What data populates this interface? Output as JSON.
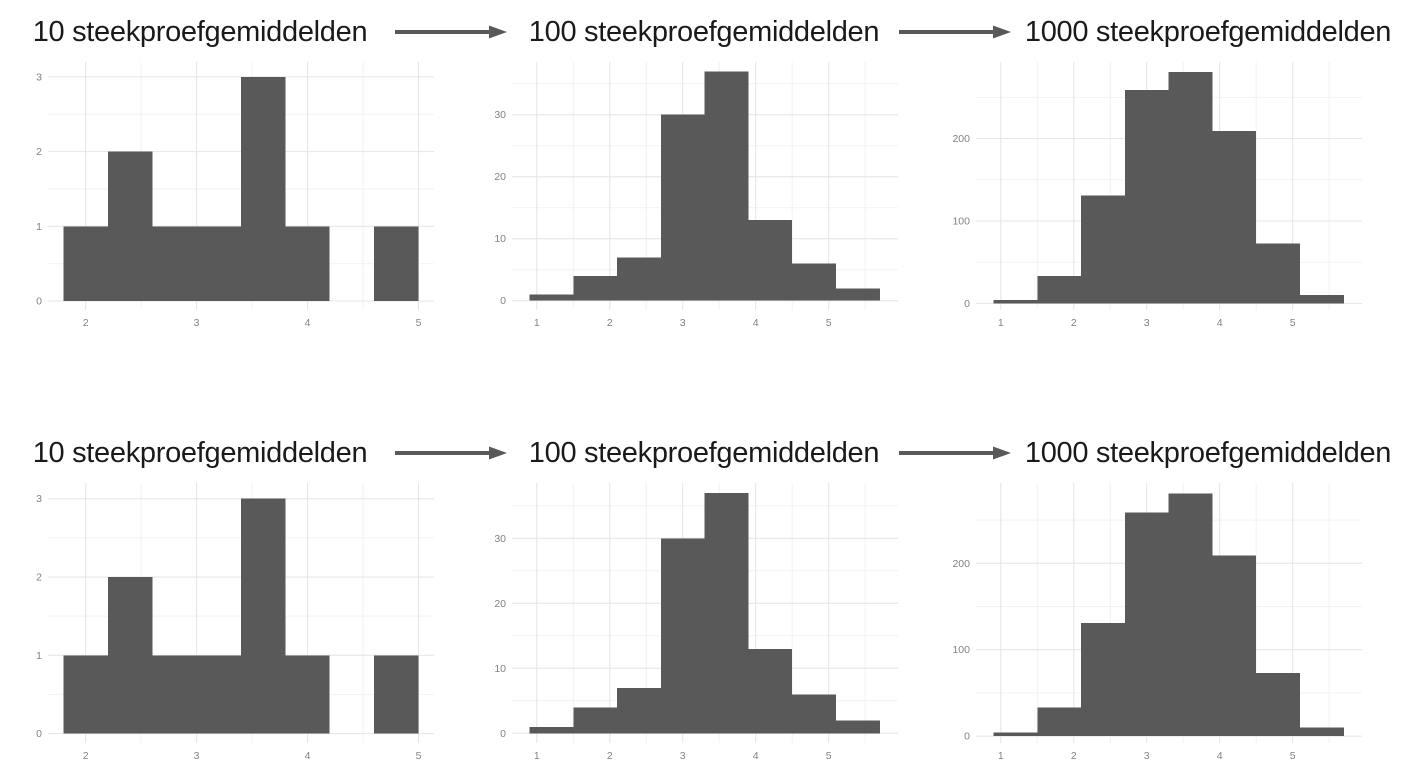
{
  "colors": {
    "background": "#ffffff",
    "bar": "#595959",
    "grid_major": "#e4e4e4",
    "grid_minor": "#f2f2f2",
    "tick_label": "#828282",
    "title": "#1a1a1a",
    "arrow": "#595959"
  },
  "icons": {
    "arrow_right": "→"
  },
  "rows": [
    {
      "panels": [
        {
          "title": "10 steekproefgemiddelden"
        },
        {
          "title": "100 steekproefgemiddelden"
        },
        {
          "title": "1000 steekproefgemiddelden"
        }
      ]
    },
    {
      "panels": [
        {
          "title": "10 steekproefgemiddelden"
        },
        {
          "title": "100 steekproefgemiddelden"
        },
        {
          "title": "1000 steekproefgemiddelden"
        }
      ]
    }
  ],
  "chart_data": [
    {
      "type": "bar",
      "subtype": "histogram",
      "title": "10 steekproefgemiddelden",
      "position": "row 1, column 1",
      "bin_edges": [
        1.8,
        2.2,
        2.6,
        3.0,
        3.4,
        3.8,
        4.2,
        4.6,
        5.0
      ],
      "counts": [
        1,
        2,
        1,
        1,
        3,
        1,
        0,
        1
      ],
      "xticks": [
        2,
        3,
        4,
        5
      ],
      "yticks": [
        0,
        1,
        2,
        3
      ],
      "xlim": [
        1.66,
        5.14
      ],
      "ylim": [
        -0.12,
        3.2
      ],
      "grid": true,
      "legend": false
    },
    {
      "type": "bar",
      "subtype": "histogram",
      "title": "100 steekproefgemiddelden",
      "position": "row 1, column 2",
      "bin_edges": [
        0.9,
        1.5,
        2.1,
        2.7,
        3.3,
        3.9,
        4.5,
        5.1,
        5.7
      ],
      "counts": [
        1,
        4,
        7,
        30,
        37,
        13,
        6,
        2
      ],
      "xticks": [
        1,
        2,
        3,
        4,
        5
      ],
      "yticks": [
        0,
        10,
        20,
        30
      ],
      "xlim": [
        0.66,
        5.95
      ],
      "ylim": [
        -1.5,
        38.5
      ],
      "grid": true,
      "legend": false
    },
    {
      "type": "bar",
      "subtype": "histogram",
      "title": "1000 steekproefgemiddelden",
      "position": "row 1, column 3",
      "bin_edges": [
        0.9,
        1.5,
        2.1,
        2.7,
        3.3,
        3.9,
        4.5,
        5.1,
        5.7
      ],
      "counts": [
        4,
        33,
        131,
        259,
        281,
        209,
        73,
        10
      ],
      "xticks": [
        1,
        2,
        3,
        4,
        5
      ],
      "yticks": [
        0,
        100,
        200
      ],
      "xlim": [
        0.66,
        5.95
      ],
      "ylim": [
        -8,
        293
      ],
      "grid": true,
      "legend": false
    },
    {
      "type": "bar",
      "subtype": "histogram",
      "title": "10 steekproefgemiddelden",
      "position": "row 2, column 1",
      "bin_edges": [
        1.8,
        2.2,
        2.6,
        3.0,
        3.4,
        3.8,
        4.2,
        4.6,
        5.0
      ],
      "counts": [
        1,
        2,
        1,
        1,
        3,
        1,
        0,
        1
      ],
      "xticks": [
        2,
        3,
        4,
        5
      ],
      "yticks": [
        0,
        1,
        2,
        3
      ],
      "xlim": [
        1.66,
        5.14
      ],
      "ylim": [
        -0.12,
        3.2
      ],
      "grid": true,
      "legend": false
    },
    {
      "type": "bar",
      "subtype": "histogram",
      "title": "100 steekproefgemiddelden",
      "position": "row 2, column 2",
      "bin_edges": [
        0.9,
        1.5,
        2.1,
        2.7,
        3.3,
        3.9,
        4.5,
        5.1,
        5.7
      ],
      "counts": [
        1,
        4,
        7,
        30,
        37,
        13,
        6,
        2
      ],
      "xticks": [
        1,
        2,
        3,
        4,
        5
      ],
      "yticks": [
        0,
        10,
        20,
        30
      ],
      "xlim": [
        0.66,
        5.95
      ],
      "ylim": [
        -1.5,
        38.5
      ],
      "grid": true,
      "legend": false
    },
    {
      "type": "bar",
      "subtype": "histogram",
      "title": "1000 steekproefgemiddelden",
      "position": "row 2, column 3",
      "bin_edges": [
        0.9,
        1.5,
        2.1,
        2.7,
        3.3,
        3.9,
        4.5,
        5.1,
        5.7
      ],
      "counts": [
        4,
        33,
        131,
        259,
        281,
        209,
        73,
        10
      ],
      "xticks": [
        1,
        2,
        3,
        4,
        5
      ],
      "yticks": [
        0,
        100,
        200
      ],
      "xlim": [
        0.66,
        5.95
      ],
      "ylim": [
        -8,
        293
      ],
      "grid": true,
      "legend": false
    }
  ]
}
